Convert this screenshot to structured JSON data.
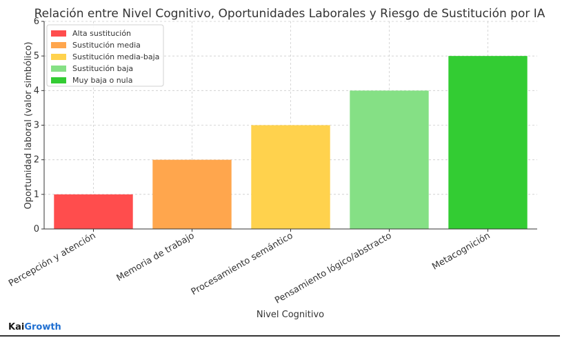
{
  "chart_data": {
    "type": "bar",
    "title": "Relación entre Nivel Cognitivo, Oportunidades Laborales y Riesgo de Sustitución por IA",
    "xlabel": "Nivel Cognitivo",
    "ylabel": "Oportunidad laboral (valor simbólico)",
    "categories": [
      "Percepción y atención",
      "Memoria de trabajo",
      "Procesamiento semántico",
      "Pensamiento lógico/abstracto",
      "Metacognición"
    ],
    "values": [
      1,
      2,
      3,
      4,
      5
    ],
    "colors": [
      "#ff4d4d",
      "#ffa64d",
      "#ffd24d",
      "#85e085",
      "#33cc33"
    ],
    "ylim": [
      0,
      6
    ],
    "yticks": [
      0,
      1,
      2,
      3,
      4,
      5,
      6
    ],
    "grid": true,
    "legend_position": "top-left",
    "legend": [
      {
        "label": "Alta sustitución",
        "color": "#ff4d4d"
      },
      {
        "label": "Sustitución media",
        "color": "#ffa64d"
      },
      {
        "label": "Sustitución media-baja",
        "color": "#ffd24d"
      },
      {
        "label": "Sustitución baja",
        "color": "#85e085"
      },
      {
        "label": "Muy baja o nula",
        "color": "#33cc33"
      }
    ]
  },
  "footer": {
    "brand_part1": "Kai",
    "brand_part2": "Growth"
  }
}
